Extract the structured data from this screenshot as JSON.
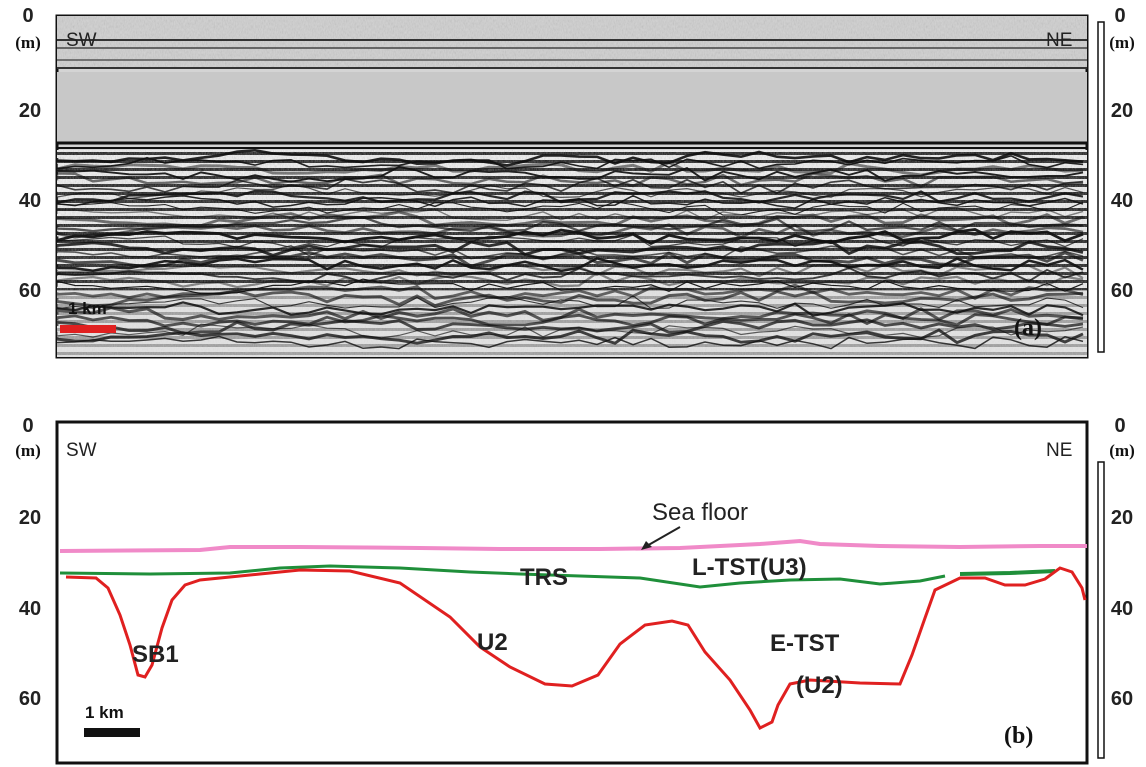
{
  "panel_a": {
    "label": "(a)",
    "left_direction": "SW",
    "right_direction": "NE",
    "scale_label": "1 km",
    "scale_color": "#e02020",
    "unit": "(m)",
    "depth_ticks": [
      "0",
      "20",
      "40",
      "60"
    ]
  },
  "panel_b": {
    "label": "(b)",
    "left_direction": "SW",
    "right_direction": "NE",
    "scale_label": "1 km",
    "scale_color": "#111111",
    "unit": "(m)",
    "depth_ticks": [
      "0",
      "20",
      "40",
      "60"
    ],
    "annotations": {
      "sea_floor": "Sea floor",
      "trs": "TRS",
      "l_tst": "L-TST(U3)",
      "sb1": "SB1",
      "u2": "U2",
      "e_tst": "E-TST",
      "e_tst_unit": "(U2)"
    },
    "line_colors": {
      "sea_floor": "#f08ac8",
      "trs": "#1f8f3a",
      "sb1": "#e02020"
    }
  },
  "depth_range_m": [
    0,
    75
  ]
}
